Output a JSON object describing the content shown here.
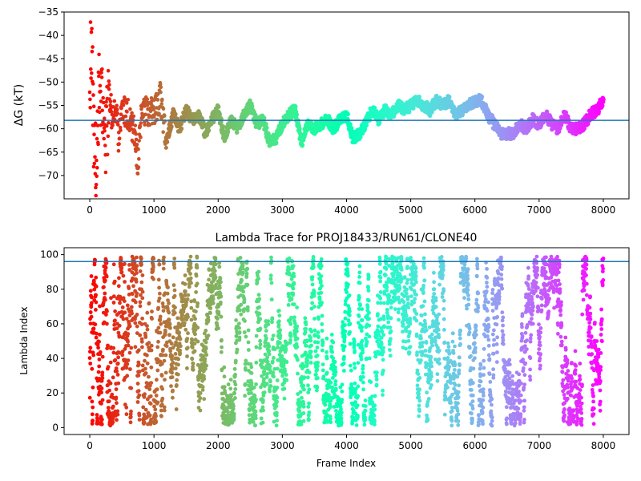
{
  "chart_data": [
    {
      "type": "scatter",
      "title": "",
      "xlabel": "",
      "ylabel": "ΔG (kT)",
      "xlim": [
        -400,
        8400
      ],
      "ylim": [
        -75,
        -35
      ],
      "x_ticks": [
        0,
        1000,
        2000,
        3000,
        4000,
        5000,
        6000,
        7000,
        8000
      ],
      "y_ticks": [
        -70,
        -65,
        -60,
        -55,
        -50,
        -45,
        -40,
        -35
      ],
      "grid": false,
      "colormap": "rainbow (red at frame 0 → violet at frame 8000)",
      "hline": {
        "y": -58.2,
        "color": "#1f77b4"
      },
      "series_key_points": [
        [
          0,
          -50
        ],
        [
          30,
          -40
        ],
        [
          60,
          -60
        ],
        [
          100,
          -66
        ],
        [
          150,
          -48
        ],
        [
          200,
          -55
        ],
        [
          250,
          -62
        ],
        [
          300,
          -52
        ],
        [
          350,
          -58
        ],
        [
          400,
          -54
        ],
        [
          450,
          -62
        ],
        [
          500,
          -56
        ],
        [
          600,
          -57
        ],
        [
          700,
          -61
        ],
        [
          750,
          -68
        ],
        [
          800,
          -57
        ],
        [
          900,
          -56
        ],
        [
          1000,
          -57
        ],
        [
          1100,
          -53
        ],
        [
          1150,
          -59
        ],
        [
          1200,
          -62
        ],
        [
          1300,
          -57
        ],
        [
          1400,
          -60
        ],
        [
          1500,
          -56
        ],
        [
          1600,
          -58
        ],
        [
          1700,
          -57
        ],
        [
          1800,
          -61
        ],
        [
          1900,
          -58
        ],
        [
          2000,
          -56
        ],
        [
          2100,
          -62
        ],
        [
          2200,
          -58
        ],
        [
          2300,
          -60
        ],
        [
          2400,
          -57
        ],
        [
          2500,
          -55
        ],
        [
          2600,
          -59
        ],
        [
          2700,
          -58
        ],
        [
          2800,
          -63
        ],
        [
          2900,
          -62
        ],
        [
          3000,
          -59
        ],
        [
          3100,
          -57
        ],
        [
          3200,
          -56
        ],
        [
          3300,
          -63
        ],
        [
          3400,
          -59
        ],
        [
          3500,
          -60
        ],
        [
          3600,
          -59
        ],
        [
          3700,
          -58
        ],
        [
          3800,
          -60
        ],
        [
          3900,
          -58
        ],
        [
          4000,
          -57
        ],
        [
          4100,
          -62
        ],
        [
          4200,
          -61
        ],
        [
          4300,
          -59
        ],
        [
          4400,
          -56
        ],
        [
          4500,
          -58
        ],
        [
          4600,
          -56
        ],
        [
          4700,
          -57
        ],
        [
          4800,
          -55
        ],
        [
          4900,
          -56
        ],
        [
          5000,
          -55
        ],
        [
          5100,
          -54
        ],
        [
          5200,
          -55
        ],
        [
          5300,
          -56
        ],
        [
          5400,
          -54
        ],
        [
          5500,
          -55
        ],
        [
          5600,
          -54
        ],
        [
          5700,
          -57
        ],
        [
          5800,
          -56
        ],
        [
          5900,
          -55
        ],
        [
          6000,
          -54
        ],
        [
          6100,
          -54
        ],
        [
          6200,
          -57
        ],
        [
          6300,
          -59
        ],
        [
          6400,
          -61
        ],
        [
          6500,
          -61
        ],
        [
          6600,
          -61
        ],
        [
          6700,
          -59
        ],
        [
          6800,
          -60
        ],
        [
          6900,
          -58
        ],
        [
          7000,
          -59
        ],
        [
          7100,
          -57
        ],
        [
          7200,
          -59
        ],
        [
          7300,
          -60
        ],
        [
          7400,
          -57
        ],
        [
          7500,
          -60
        ],
        [
          7600,
          -60
        ],
        [
          7700,
          -59
        ],
        [
          7800,
          -57
        ],
        [
          7900,
          -56
        ],
        [
          8000,
          -54
        ]
      ]
    },
    {
      "type": "scatter",
      "title": "Lambda Trace for PROJ18433/RUN61/CLONE40",
      "xlabel": "Frame Index",
      "ylabel": "Lambda Index",
      "xlim": [
        -400,
        8400
      ],
      "ylim": [
        -4,
        104
      ],
      "x_ticks": [
        0,
        1000,
        2000,
        3000,
        4000,
        5000,
        6000,
        7000,
        8000
      ],
      "y_ticks": [
        0,
        20,
        40,
        60,
        80,
        100
      ],
      "grid": false,
      "colormap": "rainbow (red at frame 0 → violet at frame 8000)",
      "hline": {
        "y": 96,
        "color": "#1f77b4"
      },
      "n_points": 4000,
      "value_range": [
        0,
        99
      ]
    }
  ]
}
